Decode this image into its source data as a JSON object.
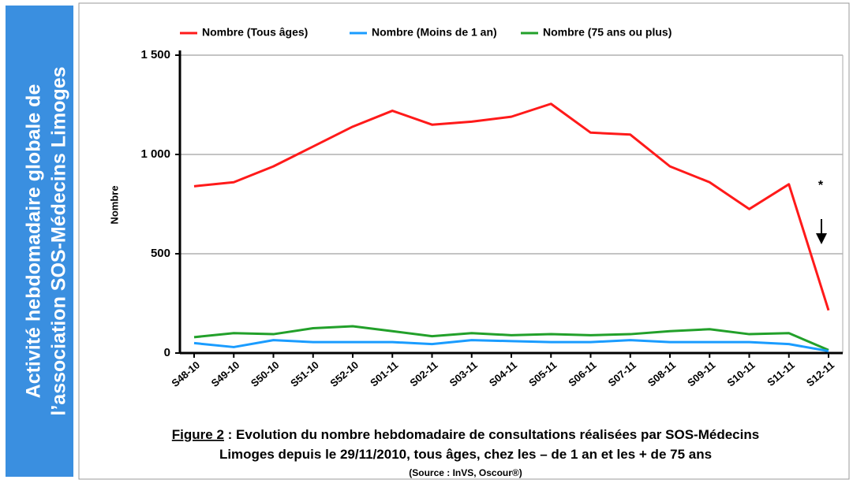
{
  "chart_data": {
    "type": "line",
    "banner": [
      "Activité hebdomadaire globale de",
      "l’association SOS-Médecins Limoges"
    ],
    "y_label": "Nombre",
    "categories": [
      "S48-10",
      "S49-10",
      "S50-10",
      "S51-10",
      "S52-10",
      "S01-11",
      "S02-11",
      "S03-11",
      "S04-11",
      "S05-11",
      "S06-11",
      "S07-11",
      "S08-11",
      "S09-11",
      "S10-11",
      "S11-11",
      "S12-11"
    ],
    "series": [
      {
        "name": "Nombre (Tous âges)",
        "color": "#ff1a1a",
        "values": [
          840,
          860,
          940,
          1040,
          1140,
          1220,
          1150,
          1165,
          1190,
          1255,
          1110,
          1100,
          940,
          860,
          725,
          850,
          215
        ]
      },
      {
        "name": "Nombre (Moins de 1 an)",
        "color": "#1a9cff",
        "values": [
          50,
          30,
          65,
          55,
          55,
          55,
          45,
          65,
          60,
          55,
          55,
          65,
          55,
          55,
          55,
          45,
          10
        ]
      },
      {
        "name": "Nombre (75 ans ou plus)",
        "color": "#22a02a",
        "values": [
          80,
          100,
          95,
          125,
          135,
          110,
          85,
          100,
          90,
          95,
          90,
          95,
          110,
          120,
          95,
          100,
          15
        ]
      }
    ],
    "ylim": [
      0,
      1500
    ],
    "yticks": [
      0,
      500,
      {
        "value": 1000,
        "label": "1 000"
      },
      {
        "value": 1500,
        "label": "1 500"
      }
    ],
    "grid": true,
    "annotation": "*",
    "caption_label": "Figure 2",
    "caption": [
      " : Evolution du nombre hebdomadaire de consultations réalisées par SOS-Médecins",
      "Limoges depuis le  29/11/2010, tous âges, chez les – de 1 an et les  + de 75 ans"
    ],
    "source": "(Source : InVS, Oscour®)"
  }
}
